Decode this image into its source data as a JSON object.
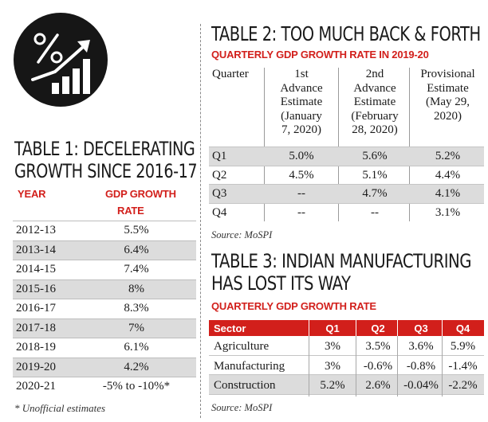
{
  "table1": {
    "title_line1": "TABLE 1: DECELERATING",
    "title_line2": "GROWTH SINCE 2016-17",
    "col_year": "YEAR",
    "col_gdp_line1": "GDP GROWTH",
    "col_gdp_line2": "RATE",
    "rows": [
      {
        "year": "2012-13",
        "rate": "5.5%"
      },
      {
        "year": "2013-14",
        "rate": "6.4%"
      },
      {
        "year": "2014-15",
        "rate": "7.4%"
      },
      {
        "year": "2015-16",
        "rate": "8%"
      },
      {
        "year": "2016-17",
        "rate": "8.3%"
      },
      {
        "year": "2017-18",
        "rate": "7%"
      },
      {
        "year": "2018-19",
        "rate": "6.1%"
      },
      {
        "year": "2019-20",
        "rate": "4.2%"
      },
      {
        "year": "2020-21",
        "rate": "-5% to -10%*"
      }
    ],
    "note": "* Unofficial estimates"
  },
  "table2": {
    "title": "TABLE 2: TOO MUCH BACK & FORTH",
    "subtitle": "QUARTERLY GDP GROWTH RATE IN 2019-20",
    "col_quarter": "Quarter",
    "col1": [
      "1st",
      "Advance",
      "Estimate",
      "(January",
      "7, 2020)"
    ],
    "col2": [
      "2nd",
      "Advance",
      "Estimate",
      "(February",
      "28, 2020)"
    ],
    "col3": [
      "Provisional",
      "Estimate",
      "(May 29,",
      "2020)"
    ],
    "rows": [
      {
        "q": "Q1",
        "c1": "5.0%",
        "c2": "5.6%",
        "c3": "5.2%"
      },
      {
        "q": "Q2",
        "c1": "4.5%",
        "c2": "5.1%",
        "c3": "4.4%"
      },
      {
        "q": "Q3",
        "c1": "--",
        "c2": "4.7%",
        "c3": "4.1%"
      },
      {
        "q": "Q4",
        "c1": "--",
        "c2": "--",
        "c3": "3.1%"
      }
    ],
    "source": "Source: MoSPI"
  },
  "table3": {
    "title_line1": "TABLE 3: INDIAN MANUFACTURING",
    "title_line2": "HAS LOST ITS WAY",
    "subtitle": "QUARTERLY GDP GROWTH RATE",
    "headers": {
      "sector": "Sector",
      "q1": "Q1",
      "q2": "Q2",
      "q3": "Q3",
      "q4": "Q4"
    },
    "rows": [
      {
        "sector": "Agriculture",
        "q1": "3%",
        "q2": "3.5%",
        "q3": "3.6%",
        "q4": "5.9%"
      },
      {
        "sector": "Manufacturing",
        "q1": "3%",
        "q2": "-0.6%",
        "q3": "-0.8%",
        "q4": "-1.4%"
      },
      {
        "sector": "Construction",
        "q1": "5.2%",
        "q2": "2.6%",
        "q3": "-0.04%",
        "q4": "-2.2%"
      }
    ],
    "source": "Source: MoSPI"
  },
  "icon": {
    "name": "growth-percent-icon"
  }
}
